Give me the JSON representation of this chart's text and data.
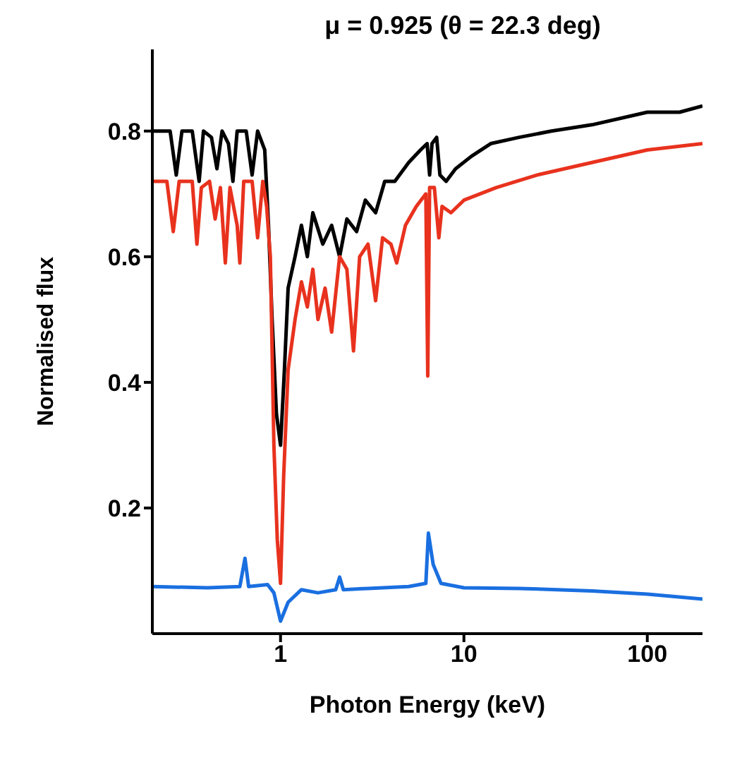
{
  "chart_data": {
    "type": "line",
    "title": "μ = 0.925 (θ = 22.3 deg)",
    "xlabel": "Photon Energy (keV)",
    "ylabel": "Normalised flux",
    "log": "x",
    "xlim": [
      0.2,
      200
    ],
    "xticks": [
      1,
      10,
      100
    ],
    "ylim": [
      0,
      0.93
    ],
    "yticks": [
      0.2,
      0.4,
      0.6,
      0.8
    ],
    "grid": false,
    "legend": false,
    "marker": "none",
    "line_style": "solid",
    "series": [
      {
        "color": "#000000",
        "x": [
          0.2,
          0.25,
          0.27,
          0.29,
          0.33,
          0.36,
          0.38,
          0.42,
          0.45,
          0.48,
          0.52,
          0.55,
          0.58,
          0.65,
          0.7,
          0.75,
          0.82,
          0.86,
          0.9,
          0.95,
          1.0,
          1.05,
          1.1,
          1.2,
          1.3,
          1.4,
          1.5,
          1.7,
          1.9,
          2.1,
          2.3,
          2.6,
          2.9,
          3.3,
          3.7,
          4.2,
          5,
          5.8,
          6.3,
          6.5,
          6.7,
          7.1,
          7.4,
          8,
          9,
          11,
          14,
          20,
          30,
          50,
          100,
          150,
          200
        ],
        "values": [
          0.8,
          0.8,
          0.73,
          0.8,
          0.8,
          0.72,
          0.8,
          0.79,
          0.74,
          0.8,
          0.78,
          0.72,
          0.8,
          0.8,
          0.73,
          0.8,
          0.77,
          0.65,
          0.5,
          0.35,
          0.3,
          0.42,
          0.55,
          0.6,
          0.65,
          0.6,
          0.67,
          0.62,
          0.65,
          0.6,
          0.66,
          0.64,
          0.69,
          0.67,
          0.72,
          0.72,
          0.75,
          0.77,
          0.78,
          0.73,
          0.78,
          0.79,
          0.73,
          0.72,
          0.74,
          0.76,
          0.78,
          0.79,
          0.8,
          0.81,
          0.83,
          0.83,
          0.84
        ]
      },
      {
        "color": "#e8321e",
        "x": [
          0.2,
          0.24,
          0.26,
          0.28,
          0.33,
          0.35,
          0.37,
          0.41,
          0.44,
          0.47,
          0.5,
          0.53,
          0.58,
          0.6,
          0.63,
          0.7,
          0.75,
          0.8,
          0.84,
          0.88,
          0.92,
          0.96,
          1.0,
          1.04,
          1.1,
          1.2,
          1.3,
          1.4,
          1.5,
          1.6,
          1.75,
          1.9,
          2.1,
          2.3,
          2.5,
          2.7,
          3,
          3.3,
          3.6,
          4,
          4.3,
          4.8,
          5.5,
          6.2,
          6.35,
          6.5,
          6.9,
          7.3,
          7.6,
          8.5,
          10,
          15,
          25,
          50,
          100,
          200
        ],
        "values": [
          0.72,
          0.72,
          0.64,
          0.72,
          0.72,
          0.62,
          0.71,
          0.72,
          0.66,
          0.71,
          0.59,
          0.71,
          0.65,
          0.59,
          0.72,
          0.72,
          0.63,
          0.72,
          0.68,
          0.6,
          0.3,
          0.15,
          0.08,
          0.25,
          0.42,
          0.5,
          0.56,
          0.52,
          0.58,
          0.5,
          0.55,
          0.48,
          0.6,
          0.58,
          0.45,
          0.6,
          0.62,
          0.53,
          0.63,
          0.62,
          0.59,
          0.65,
          0.68,
          0.7,
          0.41,
          0.71,
          0.71,
          0.63,
          0.68,
          0.67,
          0.69,
          0.71,
          0.73,
          0.75,
          0.77,
          0.78
        ]
      },
      {
        "color": "#1a6fe0",
        "x": [
          0.2,
          0.4,
          0.6,
          0.64,
          0.67,
          0.85,
          0.92,
          1.0,
          1.1,
          1.3,
          1.6,
          2.0,
          2.1,
          2.2,
          3,
          5,
          6.2,
          6.4,
          6.8,
          7.5,
          10,
          20,
          50,
          100,
          200
        ],
        "values": [
          0.075,
          0.073,
          0.075,
          0.12,
          0.075,
          0.078,
          0.065,
          0.02,
          0.05,
          0.07,
          0.065,
          0.07,
          0.09,
          0.07,
          0.072,
          0.075,
          0.08,
          0.16,
          0.11,
          0.08,
          0.073,
          0.072,
          0.068,
          0.063,
          0.055
        ]
      }
    ]
  }
}
